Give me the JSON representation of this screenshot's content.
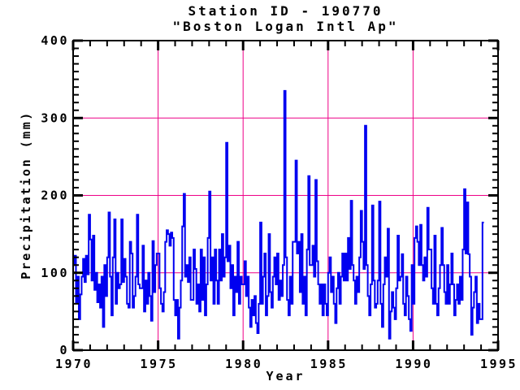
{
  "title": {
    "line1": "Station ID - 190770",
    "line2": "\"Boston Logan Intl Ap\""
  },
  "axes": {
    "x": {
      "label": "Year",
      "min": 1970,
      "max": 1995,
      "major_ticks": [
        1970,
        1975,
        1980,
        1985,
        1990,
        1995
      ],
      "minor_tick_interval": 1,
      "gridlines": [
        1975,
        1980,
        1985,
        1990
      ]
    },
    "y": {
      "label": "Precipitation (mm)",
      "min": 0,
      "max": 400,
      "major_ticks": [
        0,
        100,
        200,
        300,
        400
      ],
      "minor_tick_interval": 10,
      "gridlines": [
        100,
        200,
        300
      ]
    }
  },
  "colors": {
    "series": "#0000F0",
    "grid": "#EE0087",
    "frame": "#000000",
    "background": "#FFFFFF"
  },
  "chart_data": {
    "type": "line",
    "line_style": "step",
    "title": "Station ID - 190770",
    "subtitle": "\"Boston Logan Intl Ap\"",
    "xlabel": "Year",
    "ylabel": "Precipitation (mm)",
    "xlim": [
      1970,
      1995
    ],
    "ylim": [
      0,
      400
    ],
    "grid": true,
    "legend": false,
    "x_start_year": 1970,
    "x_step": "monthly",
    "units": "mm",
    "values": [
      110,
      122,
      62,
      95,
      40,
      72,
      95,
      118,
      88,
      122,
      98,
      175,
      143,
      90,
      148,
      78,
      100,
      62,
      85,
      55,
      95,
      30,
      110,
      70,
      120,
      178,
      95,
      45,
      120,
      169,
      60,
      100,
      80,
      85,
      169,
      88,
      118,
      95,
      60,
      55,
      140,
      125,
      55,
      70,
      95,
      175,
      85,
      80,
      80,
      135,
      50,
      90,
      60,
      100,
      70,
      38,
      141,
      75,
      110,
      125,
      125,
      80,
      60,
      50,
      75,
      140,
      155,
      150,
      135,
      152,
      145,
      65,
      45,
      65,
      15,
      55,
      90,
      160,
      202,
      95,
      110,
      88,
      120,
      65,
      65,
      130,
      105,
      60,
      85,
      50,
      130,
      65,
      120,
      45,
      85,
      145,
      205,
      90,
      120,
      60,
      130,
      90,
      60,
      130,
      90,
      150,
      95,
      120,
      268,
      115,
      135,
      80,
      110,
      45,
      95,
      75,
      140,
      60,
      95,
      85,
      85,
      115,
      70,
      95,
      55,
      30,
      65,
      45,
      70,
      35,
      22,
      60,
      165,
      60,
      95,
      125,
      45,
      70,
      150,
      75,
      55,
      95,
      120,
      85,
      125,
      65,
      90,
      70,
      110,
      335,
      120,
      65,
      45,
      95,
      60,
      140,
      140,
      245,
      125,
      140,
      75,
      150,
      60,
      95,
      45,
      130,
      225,
      110,
      110,
      135,
      95,
      220,
      115,
      85,
      60,
      85,
      45,
      85,
      60,
      45,
      100,
      120,
      75,
      95,
      60,
      35,
      80,
      100,
      60,
      95,
      125,
      90,
      125,
      90,
      145,
      105,
      193,
      110,
      90,
      60,
      95,
      75,
      120,
      180,
      140,
      105,
      290,
      110,
      70,
      45,
      85,
      187,
      90,
      55,
      60,
      90,
      192,
      60,
      30,
      85,
      120,
      95,
      157,
      15,
      50,
      75,
      55,
      40,
      80,
      148,
      90,
      95,
      124,
      60,
      45,
      95,
      70,
      40,
      25,
      110,
      60,
      145,
      160,
      140,
      110,
      162,
      110,
      90,
      120,
      95,
      184,
      130,
      130,
      80,
      60,
      148,
      60,
      45,
      80,
      110,
      158,
      110,
      75,
      60,
      110,
      60,
      85,
      125,
      85,
      45,
      65,
      85,
      60,
      95,
      65,
      130,
      208,
      125,
      191,
      124,
      95,
      20,
      55,
      75,
      95,
      35,
      60,
      40,
      40,
      165
    ]
  }
}
